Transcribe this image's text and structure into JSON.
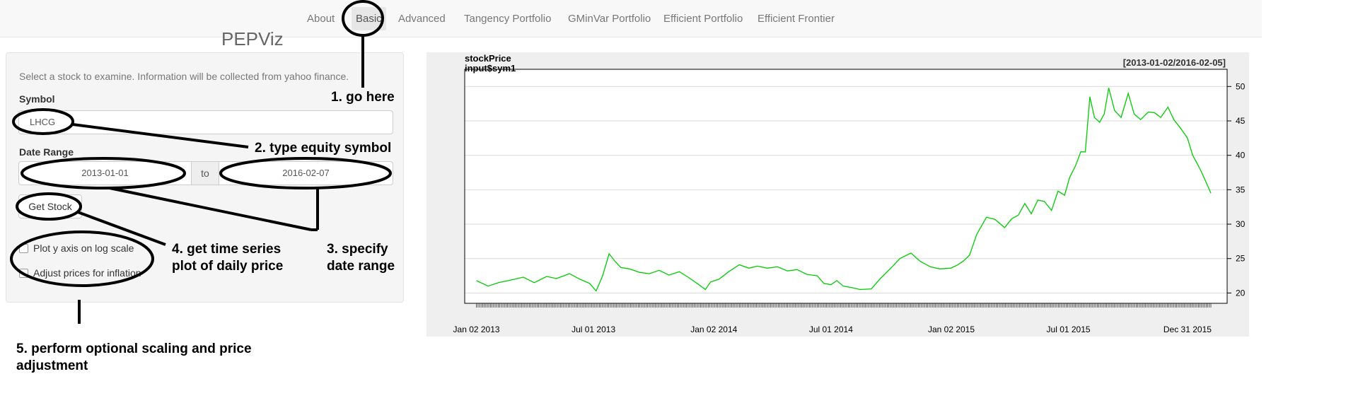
{
  "nav": {
    "items": [
      "About",
      "Basic",
      "Advanced",
      "Tangency Portfolio",
      "GMinVar Portfolio",
      "Efficient Portfolio",
      "Efficient Frontier"
    ],
    "active": "Basic"
  },
  "app_title": "PEPViz",
  "sidebar": {
    "intro": "Select a stock to examine. Information will be collected from yahoo finance.",
    "symbol_label": "Symbol",
    "symbol_value": "LHCG",
    "date_range_label": "Date Range",
    "start_date": "2013-01-01",
    "to_label": "to",
    "end_date": "2016-02-07",
    "get_stock_button": "Get Stock",
    "log_scale_label": "Plot y axis on log scale",
    "log_scale_checked": false,
    "inflation_label": "Adjust prices for inflation",
    "inflation_checked": false
  },
  "annotations": {
    "step1": "1. go here",
    "step2": "2. type equity symbol",
    "step3_line1": "3. specify",
    "step3_line2": "date range",
    "step4_line1": "4. get time series",
    "step4_line2": "plot of daily price",
    "step5_line1": "5. perform optional scaling and price",
    "step5_line2": "adjustment"
  },
  "chart_data": {
    "type": "line",
    "title": "stockPrice",
    "subtitle": "input$sym1",
    "date_range_label": "[2013-01-02/2016-02-05]",
    "line_color": "#00cc00",
    "x_tick_labels": [
      "Jan 02 2013",
      "Jul 01 2013",
      "Jan 02 2014",
      "Jul 01 2014",
      "Jan 02 2015",
      "Jul 01 2015",
      "Dec 31 2015"
    ],
    "y_ticks": [
      20,
      25,
      30,
      35,
      40,
      45,
      50
    ],
    "ylim": [
      18.5,
      52.5
    ],
    "xlim": [
      "2012-12-15",
      "2016-03-01"
    ],
    "y_axis_side": "right",
    "grid": "horizontal",
    "series": [
      {
        "x": [
          "2013-01-02",
          "2013-01-20",
          "2013-02-05",
          "2013-02-25",
          "2013-03-15",
          "2013-04-01",
          "2013-04-20",
          "2013-05-05",
          "2013-05-25",
          "2013-06-10",
          "2013-06-25",
          "2013-07-05",
          "2013-07-15",
          "2013-07-25",
          "2013-08-03",
          "2013-08-12",
          "2013-08-25",
          "2013-09-10",
          "2013-09-25",
          "2013-10-10",
          "2013-10-25",
          "2013-11-10",
          "2013-11-25",
          "2013-12-10",
          "2013-12-20",
          "2013-12-28",
          "2014-01-10",
          "2014-01-25",
          "2014-02-10",
          "2014-02-25",
          "2014-03-10",
          "2014-03-25",
          "2014-04-10",
          "2014-04-25",
          "2014-05-10",
          "2014-05-25",
          "2014-06-10",
          "2014-06-20",
          "2014-07-01",
          "2014-07-10",
          "2014-07-20",
          "2014-08-01",
          "2014-08-15",
          "2014-09-01",
          "2014-09-15",
          "2014-10-01",
          "2014-10-15",
          "2014-11-01",
          "2014-11-15",
          "2014-12-01",
          "2014-12-15",
          "2015-01-01",
          "2015-01-10",
          "2015-01-20",
          "2015-01-30",
          "2015-02-10",
          "2015-02-25",
          "2015-03-10",
          "2015-03-25",
          "2015-04-05",
          "2015-04-15",
          "2015-04-25",
          "2015-05-05",
          "2015-05-15",
          "2015-05-25",
          "2015-06-05",
          "2015-06-15",
          "2015-06-25",
          "2015-07-03",
          "2015-07-12",
          "2015-07-20",
          "2015-07-27",
          "2015-08-03",
          "2015-08-10",
          "2015-08-18",
          "2015-08-25",
          "2015-09-01",
          "2015-09-10",
          "2015-09-20",
          "2015-10-01",
          "2015-10-10",
          "2015-10-20",
          "2015-11-01",
          "2015-11-10",
          "2015-11-20",
          "2015-12-01",
          "2015-12-10",
          "2015-12-20",
          "2015-12-31",
          "2016-01-08",
          "2016-01-15",
          "2016-01-22",
          "2016-01-29",
          "2016-02-05"
        ],
        "values": [
          21.8,
          21.0,
          21.5,
          21.9,
          22.3,
          21.5,
          22.4,
          22.1,
          22.8,
          22.0,
          21.4,
          20.3,
          22.5,
          25.7,
          24.6,
          23.7,
          23.5,
          23.0,
          22.8,
          23.3,
          22.6,
          23.1,
          22.2,
          21.2,
          20.5,
          21.6,
          22.0,
          23.1,
          24.1,
          23.6,
          23.9,
          23.6,
          23.8,
          23.2,
          23.4,
          22.7,
          22.5,
          21.4,
          21.2,
          21.8,
          21.0,
          20.8,
          20.5,
          20.6,
          22.1,
          23.6,
          25.0,
          25.8,
          24.6,
          23.8,
          23.5,
          23.6,
          24.0,
          24.6,
          25.5,
          28.5,
          31.0,
          30.7,
          29.5,
          30.8,
          31.3,
          33.0,
          31.5,
          33.5,
          33.3,
          32.0,
          34.8,
          34.2,
          36.8,
          38.5,
          40.5,
          40.5,
          48.5,
          45.5,
          44.8,
          46.0,
          49.8,
          46.5,
          45.5,
          49.0,
          46.0,
          45.2,
          46.3,
          46.2,
          45.5,
          47.0,
          45.2,
          44.0,
          42.5,
          40.0,
          38.8,
          37.5,
          36.0,
          34.5
        ]
      }
    ]
  }
}
